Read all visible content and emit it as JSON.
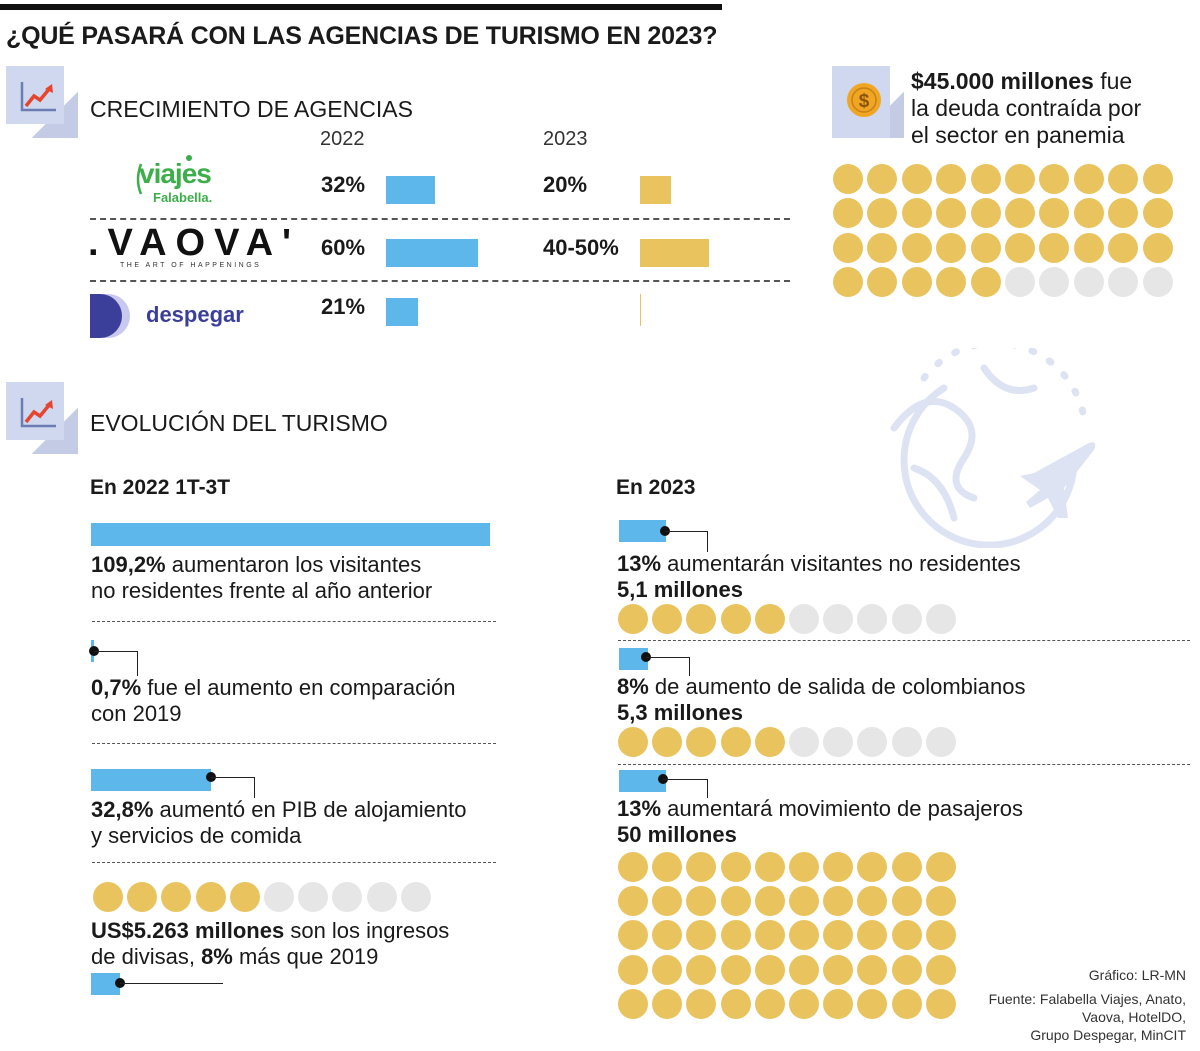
{
  "title": "¿QUÉ PASARÁ CON LAS AGENCIAS DE TURISMO EN 2023?",
  "colors": {
    "blue": "#5db7ea",
    "yellow": "#e9c45e",
    "grey": "#e6e6e6",
    "icon_bg": "#cfd8ee"
  },
  "section1": {
    "title": "CRECIMIENTO DE AGENCIAS",
    "year_a": "2022",
    "year_b": "2023",
    "logos": {
      "viajes_main": "viajes",
      "viajes_sub": "Falabella.",
      "vaova_main": ".VAOVA'",
      "vaova_sub": "THE ART OF HAPPENINGS",
      "despegar": "despegar"
    }
  },
  "debt": {
    "amount": "$45.000 millones",
    "rest1": " fue",
    "line2": "la deuda contraída por",
    "line3": "el sector en panemia"
  },
  "section2": {
    "title": "EVOLUCIÓN DEL TURISMO",
    "left_head": "En 2022 1T-3T",
    "right_head": "En 2023"
  },
  "left_items": [
    {
      "bold": "109,2%",
      "rest": " aumentaron los visitantes",
      "line2": "no residentes frente al año anterior"
    },
    {
      "bold": "0,7%",
      "rest": " fue el aumento en comparación",
      "line2": "con 2019"
    },
    {
      "bold": "32,8%",
      "rest": " aumentó en PIB de alojamiento",
      "line2": "y servicios de comida"
    },
    {
      "bold": "US$5.263 millones",
      "rest": " son los ingresos",
      "line2_pre": "de divisas, ",
      "line2_bold": "8%",
      "line2_post": " más que 2019"
    }
  ],
  "right_items": [
    {
      "bold": "13%",
      "rest": " aumentarán visitantes no residentes",
      "total": "5,1 millones"
    },
    {
      "bold": "8%",
      "rest": " de aumento de salida de colombianos",
      "total": "5,3 millones"
    },
    {
      "bold": "13%",
      "rest": " aumentará movimiento de pasajeros",
      "total": "50 millones"
    }
  ],
  "credits": {
    "graphic": "Gráfico: LR-MN",
    "source1": "Fuente: Falabella Viajes, Anato,",
    "source2": "Vaova, HotelDO,",
    "source3": "Grupo Despegar, MinCIT"
  },
  "chart_data": [
    {
      "type": "bar",
      "categories": [
        "Viajes Falabella",
        "Vaova",
        "Despegar"
      ],
      "series": [
        {
          "name": "2022",
          "values": [
            32,
            60,
            21
          ],
          "labels": [
            "32%",
            "60%",
            "21%"
          ]
        },
        {
          "name": "2023",
          "values": [
            20,
            45,
            null
          ],
          "labels": [
            "20%",
            "40-50%",
            ""
          ]
        }
      ]
    },
    {
      "type": "icon-array",
      "filled": 35,
      "total": 40
    },
    {
      "type": "bar",
      "values": [
        109.2,
        0.7,
        32.8,
        8
      ],
      "labels": [
        "109,2%",
        "0,7%",
        "32,8%",
        "8%"
      ],
      "dots": {
        "filled": 5,
        "total": 10
      }
    },
    {
      "type": "bar",
      "values": [
        13,
        8,
        13
      ],
      "labels": [
        "13%",
        "8%",
        "13%"
      ],
      "dots": [
        {
          "filled": 5,
          "total": 10
        },
        {
          "filled": 5,
          "total": 10
        },
        {
          "filled": 50,
          "total": 50
        }
      ]
    }
  ]
}
